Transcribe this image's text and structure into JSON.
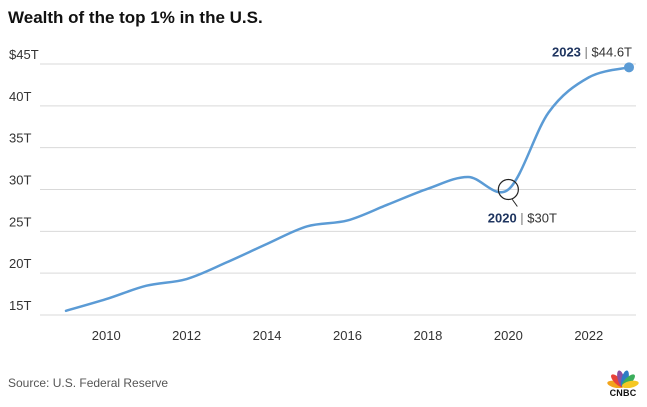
{
  "title": "Wealth of the top 1% in the U.S.",
  "source": "Source: U.S. Federal Reserve",
  "logo_text": "CNBC",
  "colors": {
    "line": "#5b9bd5",
    "grid": "#d9d9d9",
    "annotation_year": "#1f3560",
    "peacock": [
      "#f2a41b",
      "#e8423a",
      "#8b4fa3",
      "#2c7bc5",
      "#3bad5b",
      "#f5c823"
    ]
  },
  "chart_data": {
    "type": "line",
    "title": "Wealth of the top 1% in the U.S.",
    "xlabel": "",
    "ylabel": "",
    "xlim": [
      2008.6,
      2023.5
    ],
    "ylim": [
      14,
      45
    ],
    "grid": "horizontal",
    "x_ticks": [
      2010,
      2012,
      2014,
      2016,
      2018,
      2020,
      2022
    ],
    "y_ticks": [
      {
        "value": 15,
        "label": "15T"
      },
      {
        "value": 20,
        "label": "20T"
      },
      {
        "value": 25,
        "label": "25T"
      },
      {
        "value": 30,
        "label": "30T"
      },
      {
        "value": 35,
        "label": "35T"
      },
      {
        "value": 40,
        "label": "40T"
      },
      {
        "value": 45,
        "label": "$45T"
      }
    ],
    "series": [
      {
        "x": [
          2009,
          2010,
          2011,
          2012,
          2013,
          2014,
          2015,
          2016,
          2017,
          2018,
          2019,
          2020,
          2021,
          2022,
          2023
        ],
        "values": [
          15.5,
          16.9,
          18.5,
          19.3,
          21.3,
          23.5,
          25.6,
          26.3,
          28.2,
          30.1,
          31.5,
          30.0,
          39.2,
          43.4,
          44.6
        ]
      }
    ],
    "annotations": [
      {
        "x": 2020,
        "y": 30.0,
        "year": "2020",
        "value": "$30T",
        "marker": "circle"
      },
      {
        "x": 2023,
        "y": 44.6,
        "year": "2023",
        "value": "$44.6T",
        "marker": "dot"
      }
    ]
  }
}
